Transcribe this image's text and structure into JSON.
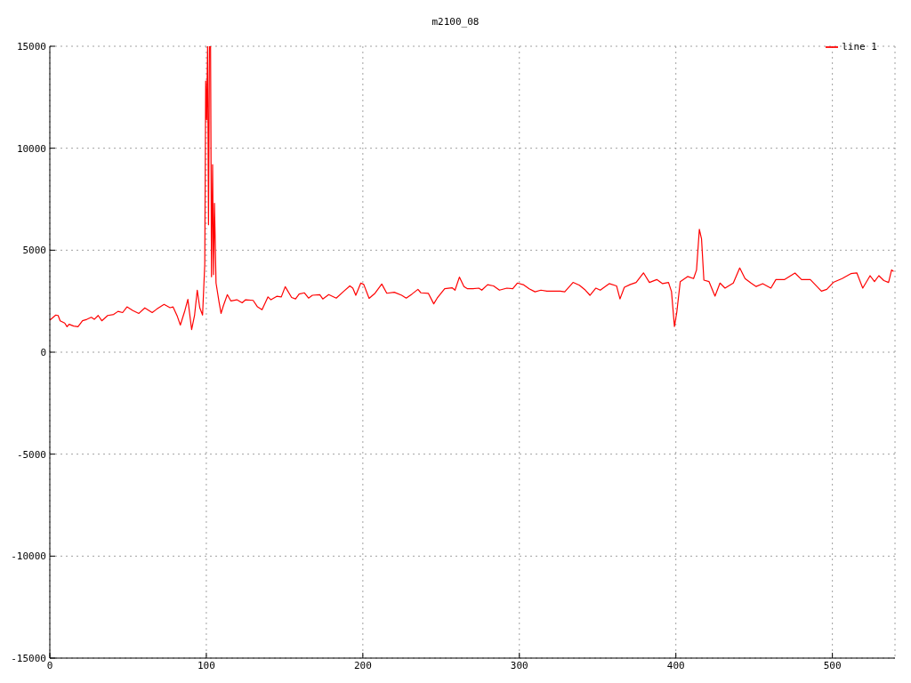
{
  "chart_data": {
    "type": "line",
    "title": "m2100_08",
    "xlim": [
      0,
      540
    ],
    "xticks": [
      0,
      100,
      200,
      300,
      400,
      500
    ],
    "ylim": [
      -15000,
      15000
    ],
    "yticks": [
      -15000,
      -10000,
      -5000,
      0,
      5000,
      10000,
      15000
    ],
    "grid": true,
    "legend": "top right",
    "marker": "none",
    "line_style": "solid",
    "series": [
      {
        "name": "line 1",
        "color": "#ff0000",
        "x": [
          0,
          3.8,
          5.3,
          6.6,
          9.5,
          11,
          12.3,
          15.2,
          18,
          20.9,
          23.7,
          26.5,
          28.4,
          30.9,
          33.2,
          37,
          40.8,
          43.6,
          46.5,
          49.3,
          53.1,
          56.9,
          60.7,
          65.4,
          68.3,
          73,
          76.8,
          78.7,
          81.5,
          83.4,
          86.3,
          88.2,
          90.6,
          92.5,
          94.2,
          95.8,
          97.6,
          99,
          99.6,
          100.2,
          100.8,
          101.4,
          102,
          102.7,
          103.3,
          104,
          104.6,
          105.2,
          106.2,
          108.1,
          109.4,
          110.9,
          113.4,
          115.7,
          119.5,
          122.9,
          125.1,
          129.9,
          132.7,
          135.6,
          139.4,
          141.3,
          145,
          147.9,
          150.4,
          154.5,
          157,
          159.3,
          162.7,
          165.3,
          167.8,
          172.5,
          174.4,
          178.2,
          183,
          187.9,
          191.7,
          193.6,
          195.5,
          198.7,
          200.6,
          204,
          207.8,
          212.1,
          215.3,
          220.1,
          224.8,
          227.7,
          231.4,
          235.2,
          237.1,
          241.9,
          245.3,
          247.5,
          252.3,
          257,
          258.9,
          261.7,
          264.6,
          266.9,
          270.3,
          274.1,
          276,
          279.7,
          283.5,
          287.3,
          292,
          295.8,
          298.7,
          302.5,
          306.3,
          310,
          313.8,
          317.6,
          326.1,
          329,
          334.3,
          338.4,
          342.2,
          345.1,
          348.9,
          351.7,
          357.4,
          362.1,
          364.3,
          367.1,
          370.9,
          374.6,
          379.3,
          383.1,
          387.8,
          391.5,
          395.3,
          397.2,
          399.1,
          400.6,
          402.8,
          407.5,
          411.3,
          413.2,
          415,
          416.4,
          417.9,
          421.2,
          425,
          428.2,
          431.4,
          436.7,
          440.8,
          444.2,
          448,
          451.3,
          455.5,
          460.7,
          463.9,
          469.5,
          476.1,
          480.3,
          485.9,
          493,
          496.4,
          500.6,
          506.2,
          511.8,
          515.6,
          519.4,
          524.1,
          526.9,
          529.7,
          532.9,
          535.9,
          537.8,
          539.1
        ],
        "values": [
          1570,
          1820,
          1800,
          1540,
          1430,
          1250,
          1370,
          1280,
          1250,
          1540,
          1610,
          1710,
          1610,
          1800,
          1540,
          1800,
          1850,
          2000,
          1940,
          2220,
          2040,
          1900,
          2170,
          1940,
          2110,
          2340,
          2180,
          2220,
          1750,
          1330,
          2040,
          2590,
          1110,
          1820,
          3040,
          2180,
          1820,
          4320,
          13300,
          11400,
          15000,
          6250,
          15000,
          15000,
          3700,
          9200,
          3800,
          7300,
          3390,
          2470,
          1900,
          2280,
          2820,
          2510,
          2570,
          2420,
          2570,
          2540,
          2220,
          2080,
          2710,
          2570,
          2740,
          2710,
          3210,
          2680,
          2610,
          2850,
          2910,
          2650,
          2790,
          2820,
          2610,
          2820,
          2650,
          2990,
          3250,
          3140,
          2790,
          3390,
          3320,
          2640,
          2890,
          3340,
          2890,
          2940,
          2790,
          2650,
          2850,
          3080,
          2910,
          2880,
          2370,
          2650,
          3110,
          3160,
          3040,
          3680,
          3220,
          3110,
          3110,
          3140,
          3040,
          3310,
          3250,
          3040,
          3140,
          3110,
          3390,
          3310,
          3110,
          2960,
          3040,
          2990,
          2990,
          2960,
          3420,
          3280,
          3040,
          2790,
          3140,
          3040,
          3360,
          3250,
          2610,
          3180,
          3320,
          3420,
          3890,
          3420,
          3560,
          3360,
          3420,
          2970,
          1260,
          1970,
          3460,
          3710,
          3610,
          4030,
          6020,
          5550,
          3530,
          3460,
          2750,
          3390,
          3140,
          3390,
          4130,
          3610,
          3390,
          3220,
          3360,
          3140,
          3560,
          3560,
          3880,
          3560,
          3560,
          2990,
          3080,
          3420,
          3610,
          3850,
          3890,
          3140,
          3750,
          3460,
          3750,
          3510,
          3420,
          4030,
          3960
        ]
      }
    ]
  }
}
